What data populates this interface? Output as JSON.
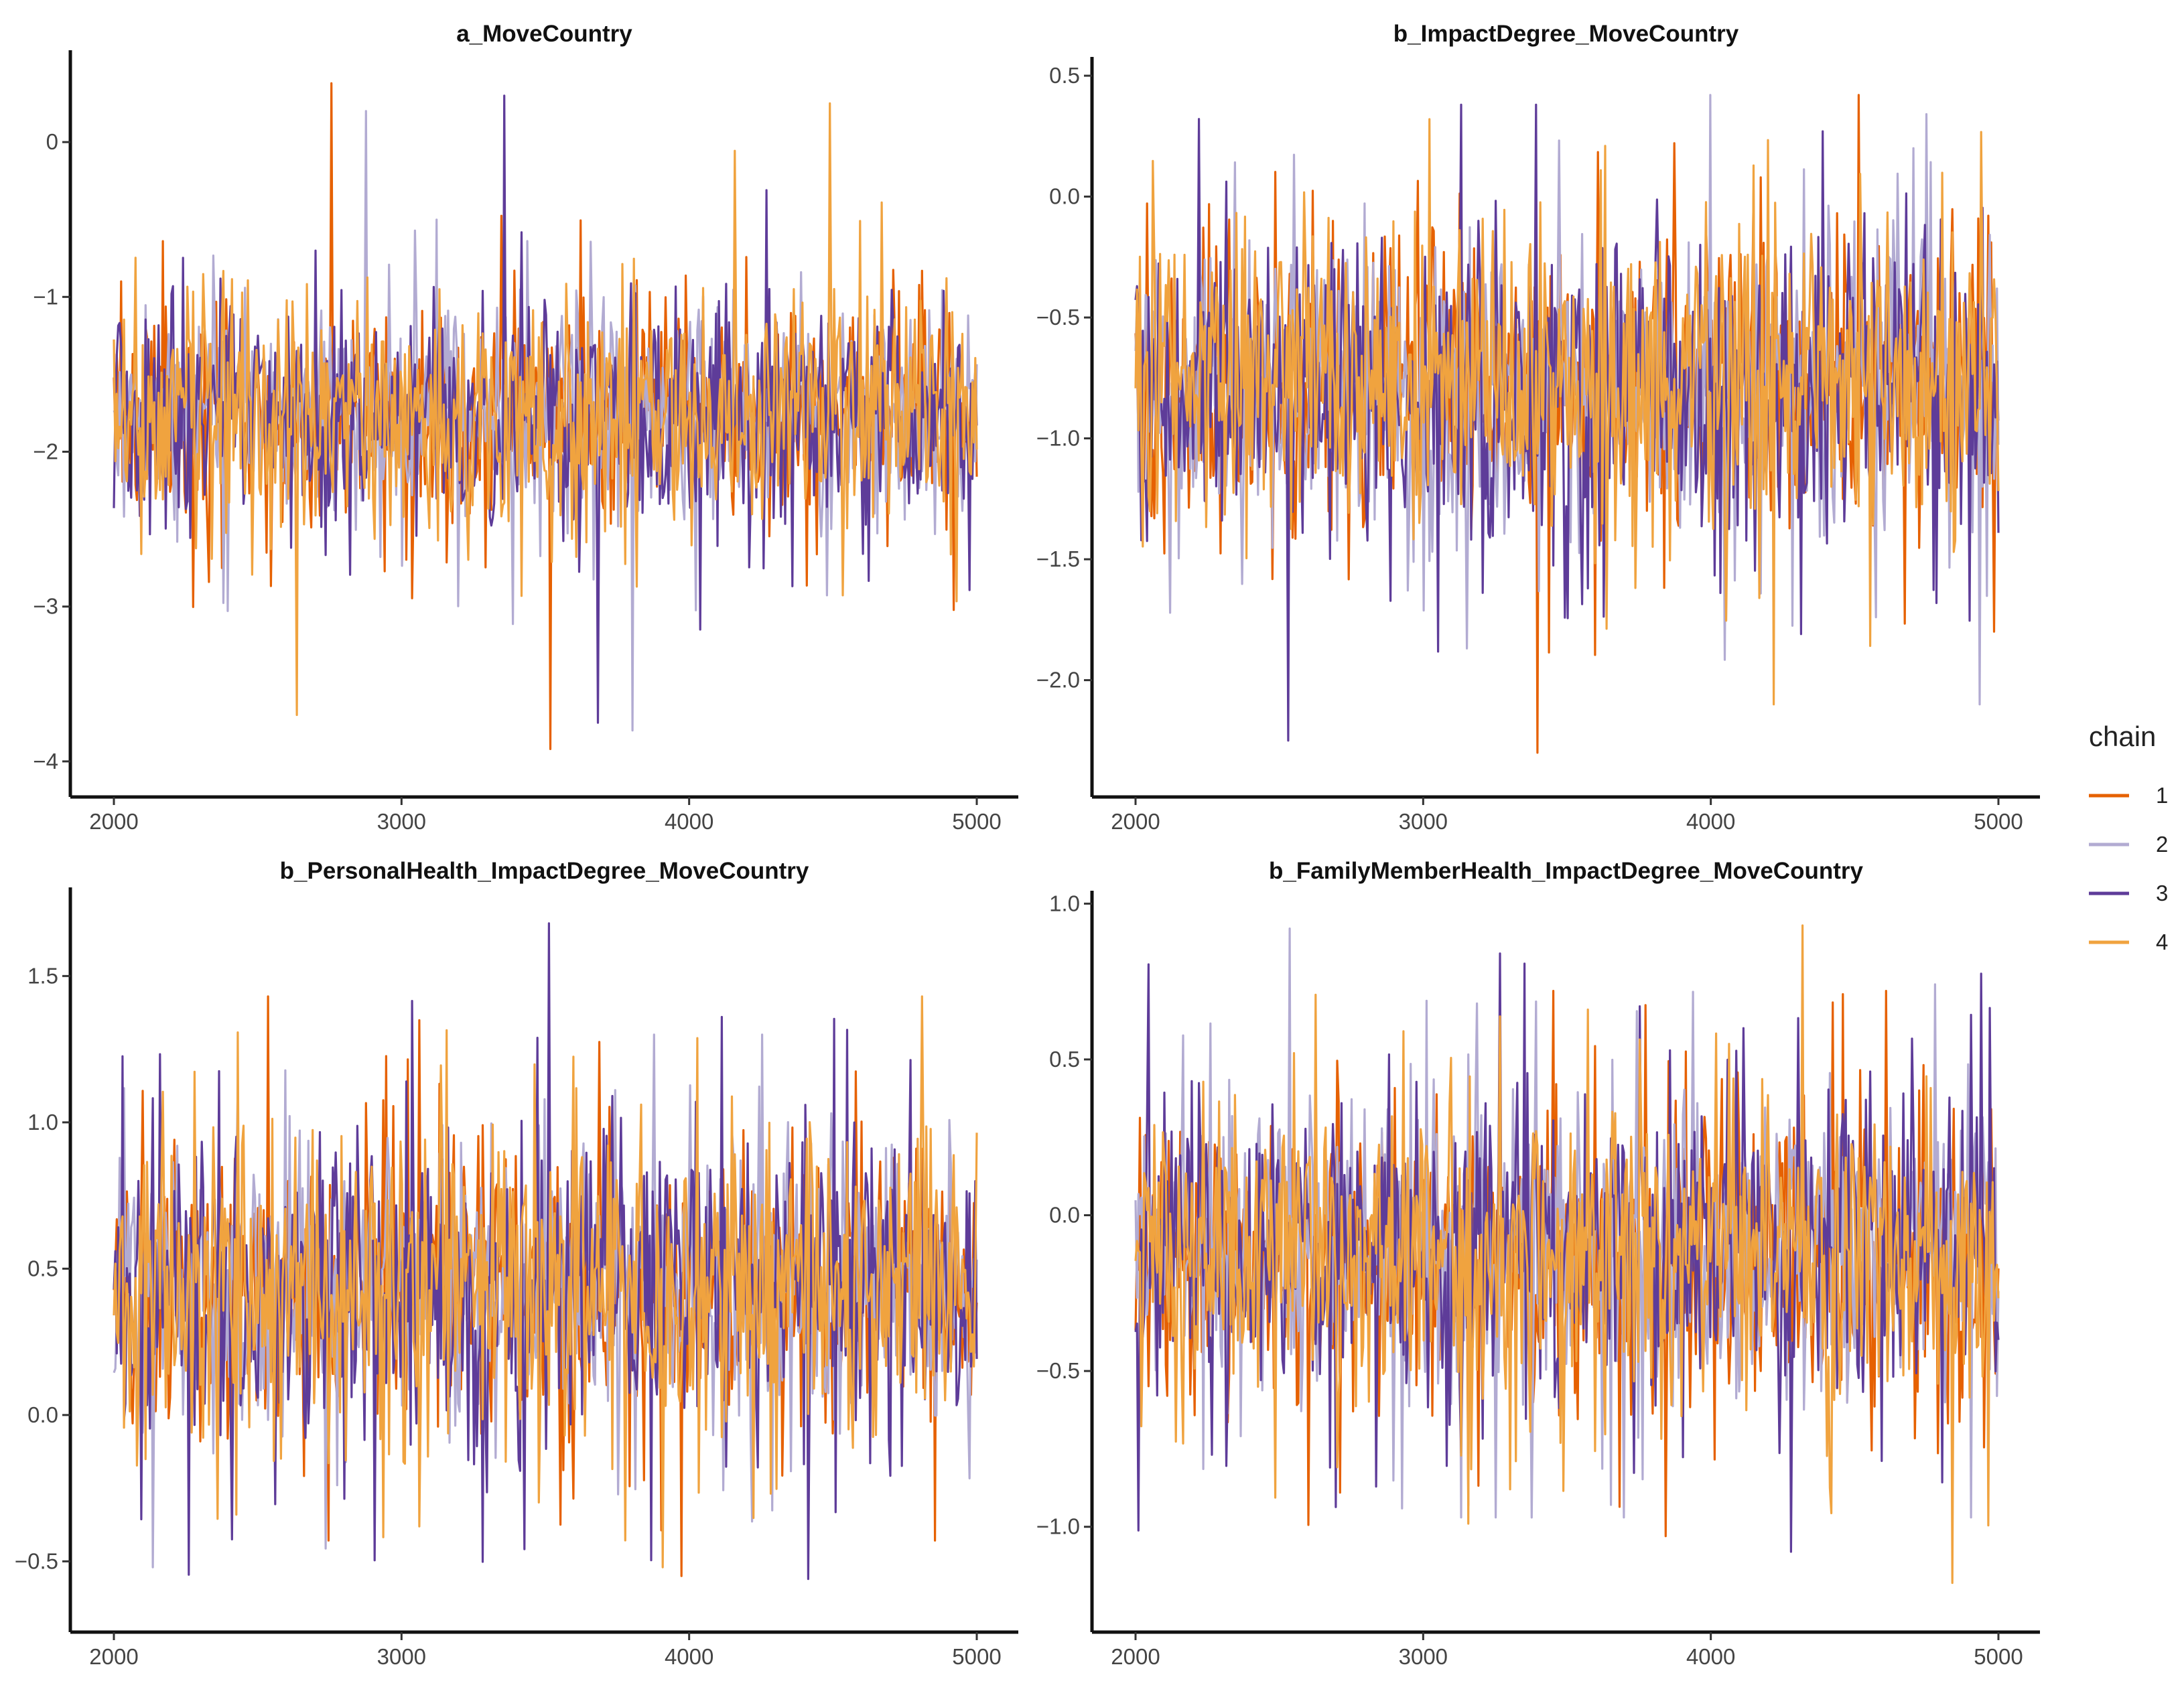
{
  "chart_data": [
    {
      "type": "line",
      "title": "a_MoveCountry",
      "xlabel": "",
      "ylabel": "",
      "xlim": [
        2000,
        5000
      ],
      "ylim": [
        -4.1,
        0.55
      ],
      "x_ticks": [
        2000,
        3000,
        4000,
        5000
      ],
      "x_tick_labels": [
        "2000",
        "3000",
        "4000",
        "5000"
      ],
      "y_ticks": [
        0,
        -1,
        -2,
        -3,
        -4
      ],
      "y_tick_labels": [
        "0",
        "−1",
        "−2",
        "−3",
        "−4"
      ],
      "series": [
        {
          "name": "1",
          "center": -1.75,
          "sd": 0.35,
          "max": 0.38,
          "min": -3.92
        },
        {
          "name": "2",
          "center": -1.75,
          "sd": 0.36,
          "max": 0.2,
          "min": -3.8
        },
        {
          "name": "3",
          "center": -1.75,
          "sd": 0.38,
          "max": 0.3,
          "min": -3.75
        },
        {
          "name": "4",
          "center": -1.75,
          "sd": 0.37,
          "max": 0.25,
          "min": -3.7
        }
      ]
    },
    {
      "type": "line",
      "title": "b_ImpactDegree_MoveCountry",
      "xlabel": "",
      "ylabel": "",
      "xlim": [
        2000,
        5000
      ],
      "ylim": [
        -2.4,
        0.55
      ],
      "x_ticks": [
        2000,
        3000,
        4000,
        5000
      ],
      "x_tick_labels": [
        "2000",
        "3000",
        "4000",
        "5000"
      ],
      "y_ticks": [
        0.5,
        0.0,
        -0.5,
        -1.0,
        -1.5,
        -2.0
      ],
      "y_tick_labels": [
        "0.5",
        "0.0",
        "−0.5",
        "−1.0",
        "−1.5",
        "−2.0"
      ],
      "series": [
        {
          "name": "1",
          "center": -0.78,
          "sd": 0.3,
          "max": 0.42,
          "min": -2.3
        },
        {
          "name": "2",
          "center": -0.78,
          "sd": 0.31,
          "max": 0.42,
          "min": -2.1
        },
        {
          "name": "3",
          "center": -0.78,
          "sd": 0.32,
          "max": 0.38,
          "min": -2.25
        },
        {
          "name": "4",
          "center": -0.78,
          "sd": 0.31,
          "max": 0.32,
          "min": -2.1
        }
      ]
    },
    {
      "type": "line",
      "title": "b_PersonalHealth_ImpactDegree_MoveCountry",
      "xlabel": "",
      "ylabel": "",
      "xlim": [
        2000,
        5000
      ],
      "ylim": [
        -0.68,
        1.78
      ],
      "x_ticks": [
        2000,
        3000,
        4000,
        5000
      ],
      "x_tick_labels": [
        "2000",
        "3000",
        "4000",
        "5000"
      ],
      "y_ticks": [
        1.5,
        1.0,
        0.5,
        0.0,
        -0.5
      ],
      "y_tick_labels": [
        "1.5",
        "1.0",
        "0.5",
        "0.0",
        "−0.5"
      ],
      "series": [
        {
          "name": "1",
          "center": 0.44,
          "sd": 0.24,
          "max": 1.43,
          "min": -0.55
        },
        {
          "name": "2",
          "center": 0.44,
          "sd": 0.25,
          "max": 1.3,
          "min": -0.52
        },
        {
          "name": "3",
          "center": 0.44,
          "sd": 0.26,
          "max": 1.68,
          "min": -0.56
        },
        {
          "name": "4",
          "center": 0.44,
          "sd": 0.25,
          "max": 1.43,
          "min": -0.52
        }
      ]
    },
    {
      "type": "line",
      "title": "b_FamilyMemberHealth_ImpactDegree_MoveCountry",
      "xlabel": "",
      "ylabel": "",
      "xlim": [
        2000,
        5000
      ],
      "ylim": [
        -1.28,
        1.02
      ],
      "x_ticks": [
        2000,
        3000,
        4000,
        5000
      ],
      "x_tick_labels": [
        "2000",
        "3000",
        "4000",
        "5000"
      ],
      "y_ticks": [
        1.0,
        0.5,
        0.0,
        -0.5,
        -1.0
      ],
      "y_tick_labels": [
        "1.0",
        "0.5",
        "0.0",
        "−0.5",
        "−1.0"
      ],
      "series": [
        {
          "name": "1",
          "center": -0.12,
          "sd": 0.23,
          "max": 0.72,
          "min": -1.03
        },
        {
          "name": "2",
          "center": -0.12,
          "sd": 0.24,
          "max": 0.92,
          "min": -0.97
        },
        {
          "name": "3",
          "center": -0.12,
          "sd": 0.25,
          "max": 0.84,
          "min": -1.08
        },
        {
          "name": "4",
          "center": -0.12,
          "sd": 0.24,
          "max": 0.93,
          "min": -1.18
        }
      ]
    }
  ],
  "legend": {
    "title": "chain",
    "placement": "right",
    "items": [
      {
        "label": "1",
        "color": "#e66101"
      },
      {
        "label": "2",
        "color": "#b2abd2"
      },
      {
        "label": "3",
        "color": "#5e3c99"
      },
      {
        "label": "4",
        "color": "#f0a33f"
      }
    ]
  }
}
